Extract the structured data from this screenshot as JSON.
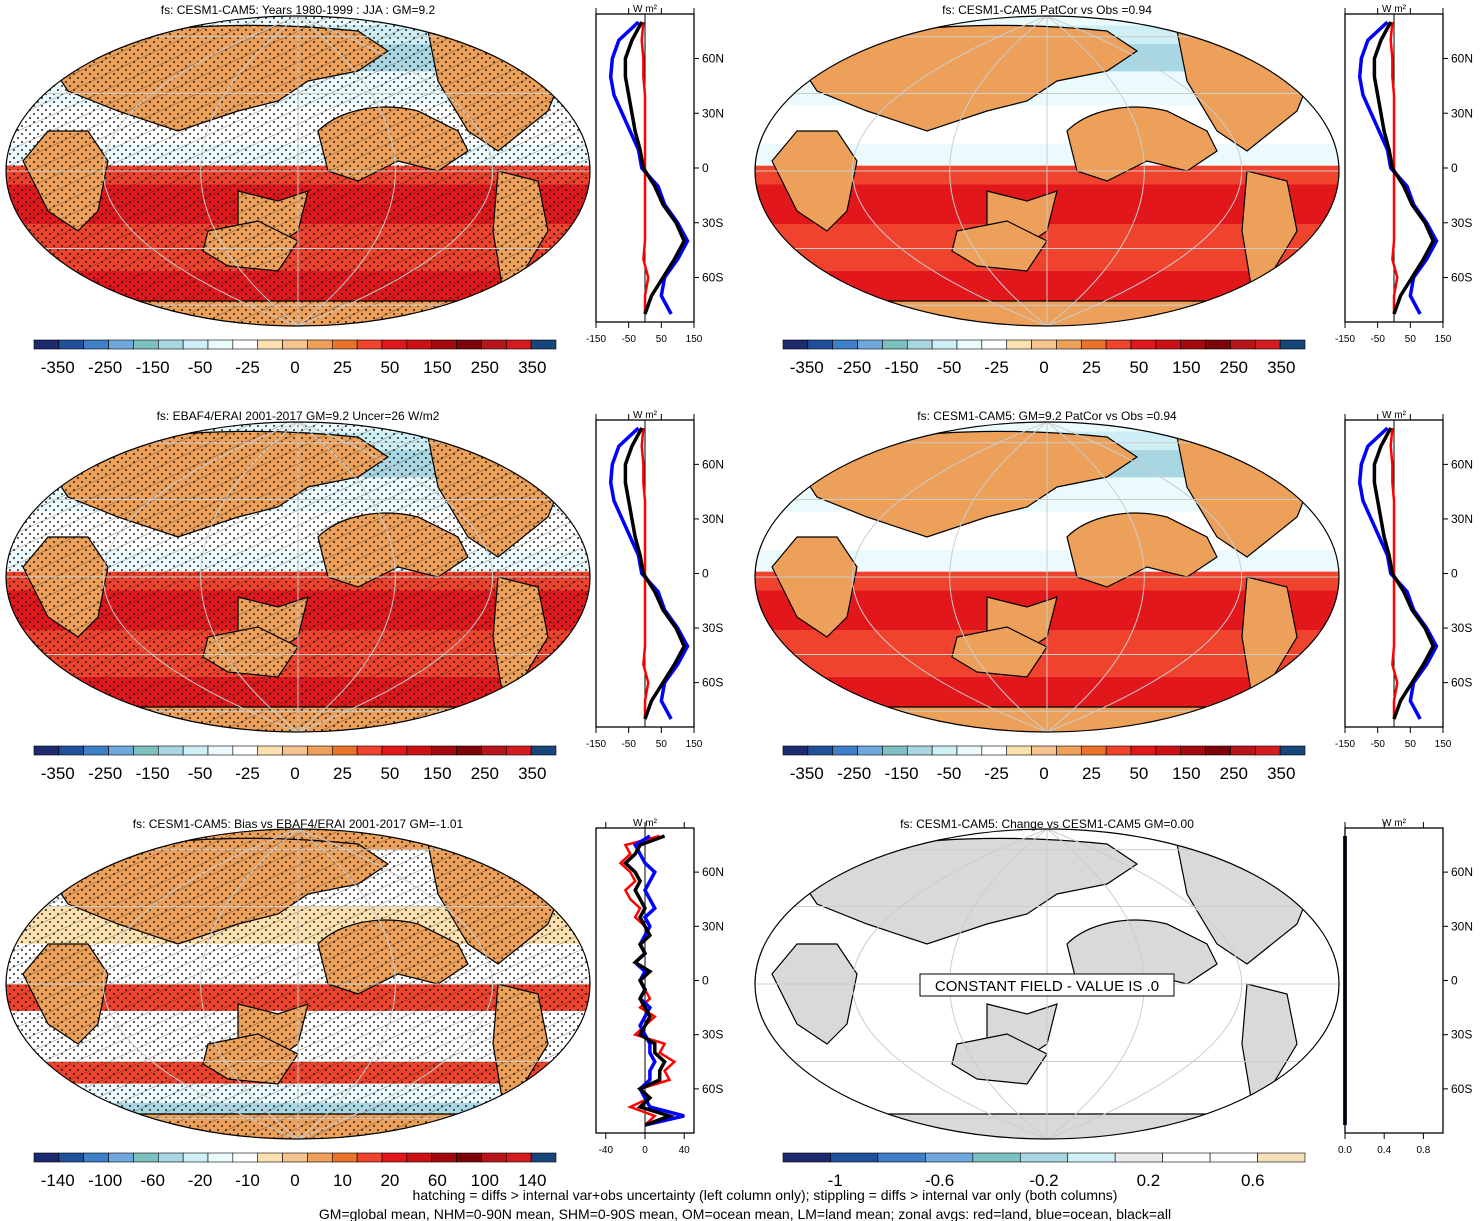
{
  "palettes": {
    "main": [
      "#1d2a6e",
      "#20509a",
      "#3f7fc7",
      "#6fa7dc",
      "#7cc0c0",
      "#a8d6e2",
      "#cdeff5",
      "#eafafd",
      "#ffffff",
      "#fbe0b0",
      "#f6c48e",
      "#eca05a",
      "#e9732b",
      "#f0432d",
      "#e2171c",
      "#cb1116",
      "#a3080d",
      "#7a0408",
      "#b8151a",
      "#d31c1f",
      "#16467a"
    ],
    "bias": [
      "#1d2a6e",
      "#20509a",
      "#3f7fc7",
      "#6fa7dc",
      "#7cc0c0",
      "#a8d6e2",
      "#cdeff5",
      "#eafafd",
      "#ffffff",
      "#fbe0b0",
      "#f6c48e",
      "#eca05a",
      "#e9732b",
      "#f0432d",
      "#e2171c",
      "#cb1116",
      "#a3080d",
      "#7a0408",
      "#b8151a",
      "#d31c1f",
      "#16467a"
    ],
    "change": [
      "#1d2a6e",
      "#20509a",
      "#3f7fc7",
      "#6fa7dc",
      "#7cc0c0",
      "#a8d6e2",
      "#cdeff5",
      "#eaeaea",
      "#ffffff",
      "#ffffff",
      "#f3dfb8"
    ],
    "land": "#eca05a",
    "grey": "#d9d9d9",
    "zonal_land": "#ff0000",
    "zonal_ocean": "#0000ff",
    "zonal_all": "#000000"
  },
  "footer": {
    "line1": "hatching = diffs > internal var+obs uncertainty (left column only); stippling = diffs > internal var only (both columns)",
    "line2": "GM=global mean, NHM=0-90N mean, SHM=0-90S mean, OM=ocean mean, LM=land mean; zonal avgs: red=land, blue=ocean, black=all"
  },
  "constant_label": "CONSTANT FIELD - VALUE IS .0",
  "chart_data": [
    {
      "type": "heatmap",
      "title": "fs: CESM1-CAM5: Years 1980-1999 : JJA : GM=9.2",
      "colorbar_labels": [
        "-350",
        "-250",
        "-150",
        "-50",
        "-25",
        "0",
        "25",
        "50",
        "150",
        "250",
        "350"
      ],
      "zonal": {
        "unit": "W m²",
        "xlim": [
          -150,
          150
        ],
        "xticks": [
          "-150",
          "-50",
          "50",
          "150"
        ],
        "yticks": [
          "60N",
          "30N",
          "0",
          "30S",
          "60S"
        ],
        "lat": [
          80,
          70,
          60,
          50,
          40,
          30,
          20,
          10,
          0,
          -10,
          -20,
          -30,
          -40,
          -50,
          -60,
          -70,
          -80
        ],
        "land": [
          -5,
          -10,
          -5,
          -5,
          0,
          0,
          0,
          0,
          0,
          0,
          0,
          0,
          0,
          -5,
          10,
          0,
          0
        ],
        "ocean": [
          -20,
          -80,
          -100,
          -105,
          -95,
          -70,
          -45,
          -20,
          -10,
          40,
          60,
          100,
          130,
          100,
          60,
          50,
          80
        ],
        "all": [
          -10,
          -40,
          -60,
          -60,
          -50,
          -40,
          -30,
          -15,
          -5,
          30,
          55,
          95,
          120,
          90,
          55,
          20,
          0
        ]
      }
    },
    {
      "type": "heatmap",
      "title": "fs: CESM1-CAM5 PatCor vs Obs =0.94",
      "colorbar_labels": [
        "-350",
        "-250",
        "-150",
        "-50",
        "-25",
        "0",
        "25",
        "50",
        "150",
        "250",
        "350"
      ],
      "zonal": {
        "unit": "W m²",
        "xlim": [
          -150,
          150
        ],
        "xticks": [
          "-150",
          "-50",
          "50",
          "150"
        ],
        "yticks": [
          "60N",
          "30N",
          "0",
          "30S",
          "60S"
        ],
        "lat": [
          80,
          70,
          60,
          50,
          40,
          30,
          20,
          10,
          0,
          -10,
          -20,
          -30,
          -40,
          -50,
          -60,
          -70,
          -80
        ],
        "land": [
          -5,
          -10,
          -5,
          -5,
          0,
          0,
          0,
          0,
          0,
          0,
          0,
          0,
          0,
          -5,
          10,
          0,
          0
        ],
        "ocean": [
          -20,
          -80,
          -100,
          -105,
          -95,
          -70,
          -45,
          -20,
          -10,
          40,
          60,
          100,
          130,
          100,
          60,
          50,
          80
        ],
        "all": [
          -10,
          -40,
          -60,
          -60,
          -50,
          -40,
          -30,
          -15,
          -5,
          30,
          55,
          95,
          120,
          90,
          55,
          20,
          0
        ]
      }
    },
    {
      "type": "heatmap",
      "title": "fs: EBAF4/ERAI 2001-2017 GM=9.2 Uncer=26 W/m2",
      "colorbar_labels": [
        "-350",
        "-250",
        "-150",
        "-50",
        "-25",
        "0",
        "25",
        "50",
        "150",
        "250",
        "350"
      ],
      "zonal": {
        "unit": "W m²",
        "xlim": [
          -150,
          150
        ],
        "xticks": [
          "-150",
          "-50",
          "50",
          "150"
        ],
        "yticks": [
          "60N",
          "30N",
          "0",
          "30S",
          "60S"
        ],
        "lat": [
          80,
          70,
          60,
          50,
          40,
          30,
          20,
          10,
          0,
          -10,
          -20,
          -30,
          -40,
          -50,
          -60,
          -70,
          -80
        ],
        "land": [
          -5,
          -10,
          -5,
          -5,
          0,
          0,
          0,
          0,
          0,
          0,
          0,
          0,
          0,
          -5,
          10,
          0,
          0
        ],
        "ocean": [
          -20,
          -80,
          -100,
          -105,
          -95,
          -70,
          -45,
          -20,
          -10,
          40,
          60,
          100,
          130,
          100,
          60,
          50,
          80
        ],
        "all": [
          -10,
          -40,
          -60,
          -60,
          -50,
          -40,
          -30,
          -15,
          -5,
          30,
          55,
          95,
          120,
          90,
          55,
          20,
          0
        ]
      }
    },
    {
      "type": "heatmap",
      "title": "fs: CESM1-CAM5: GM=9.2 PatCor vs Obs =0.94",
      "colorbar_labels": [
        "-350",
        "-250",
        "-150",
        "-50",
        "-25",
        "0",
        "25",
        "50",
        "150",
        "250",
        "350"
      ],
      "zonal": {
        "unit": "W m²",
        "xlim": [
          -150,
          150
        ],
        "xticks": [
          "-150",
          "-50",
          "50",
          "150"
        ],
        "yticks": [
          "60N",
          "30N",
          "0",
          "30S",
          "60S"
        ],
        "lat": [
          80,
          70,
          60,
          50,
          40,
          30,
          20,
          10,
          0,
          -10,
          -20,
          -30,
          -40,
          -50,
          -60,
          -70,
          -80
        ],
        "land": [
          -5,
          -10,
          -5,
          -5,
          0,
          0,
          0,
          0,
          0,
          0,
          0,
          0,
          0,
          -5,
          10,
          0,
          0
        ],
        "ocean": [
          -20,
          -80,
          -100,
          -105,
          -95,
          -70,
          -45,
          -20,
          -10,
          40,
          60,
          100,
          130,
          100,
          60,
          50,
          80
        ],
        "all": [
          -10,
          -40,
          -60,
          -60,
          -50,
          -40,
          -30,
          -15,
          -5,
          30,
          55,
          95,
          120,
          90,
          55,
          20,
          0
        ]
      }
    },
    {
      "type": "heatmap",
      "title": "fs: CESM1-CAM5: Bias vs EBAF4/ERAI 2001-2017 GM=-1.01",
      "colorbar_labels": [
        "-140",
        "-100",
        "-60",
        "-20",
        "-10",
        "0",
        "10",
        "20",
        "60",
        "100",
        "140"
      ],
      "zonal": {
        "unit": "W m²",
        "xlim": [
          -50,
          50
        ],
        "xticks": [
          "-40",
          "0",
          "40"
        ],
        "yticks": [
          "60N",
          "30N",
          "0",
          "30S",
          "60S"
        ],
        "lat": [
          80,
          75,
          70,
          65,
          60,
          55,
          50,
          45,
          40,
          35,
          30,
          25,
          20,
          15,
          10,
          5,
          0,
          -5,
          -10,
          -15,
          -20,
          -25,
          -30,
          -35,
          -40,
          -45,
          -50,
          -55,
          -60,
          -65,
          -70,
          -75,
          -80
        ],
        "land": [
          15,
          -20,
          -15,
          -25,
          -15,
          -10,
          -20,
          -15,
          -5,
          -10,
          0,
          5,
          -5,
          0,
          -10,
          5,
          -5,
          0,
          5,
          -5,
          10,
          0,
          -10,
          20,
          15,
          30,
          20,
          25,
          -5,
          5,
          -15,
          10,
          0
        ],
        "ocean": [
          5,
          -10,
          -5,
          0,
          10,
          5,
          0,
          5,
          10,
          0,
          5,
          0,
          -5,
          0,
          -10,
          0,
          -5,
          0,
          -5,
          5,
          0,
          -5,
          0,
          5,
          5,
          10,
          5,
          5,
          -5,
          0,
          5,
          40,
          0
        ],
        "all": [
          20,
          -5,
          -10,
          -20,
          -10,
          -5,
          -10,
          -5,
          0,
          -5,
          0,
          5,
          -5,
          0,
          -10,
          5,
          -5,
          0,
          -5,
          0,
          5,
          0,
          -5,
          10,
          10,
          20,
          15,
          15,
          -5,
          5,
          -5,
          25,
          0
        ]
      }
    },
    {
      "type": "heatmap",
      "title": "fs: CESM1-CAM5: Change vs CESM1-CAM5 GM=0.00",
      "colorbar_labels": [
        "-1",
        "-0.6",
        "-0.2",
        "0.2",
        "0.6"
      ],
      "zonal": {
        "unit": "W m²",
        "xlim": [
          0,
          1
        ],
        "xticks": [
          "0.0",
          "0.4",
          "0.8"
        ],
        "yticks": [
          "60N",
          "30N",
          "0",
          "30S",
          "60S"
        ],
        "lat": [
          80,
          -80
        ],
        "land": [
          0,
          0
        ],
        "ocean": [
          0,
          0
        ],
        "all": [
          0,
          0
        ]
      }
    }
  ]
}
